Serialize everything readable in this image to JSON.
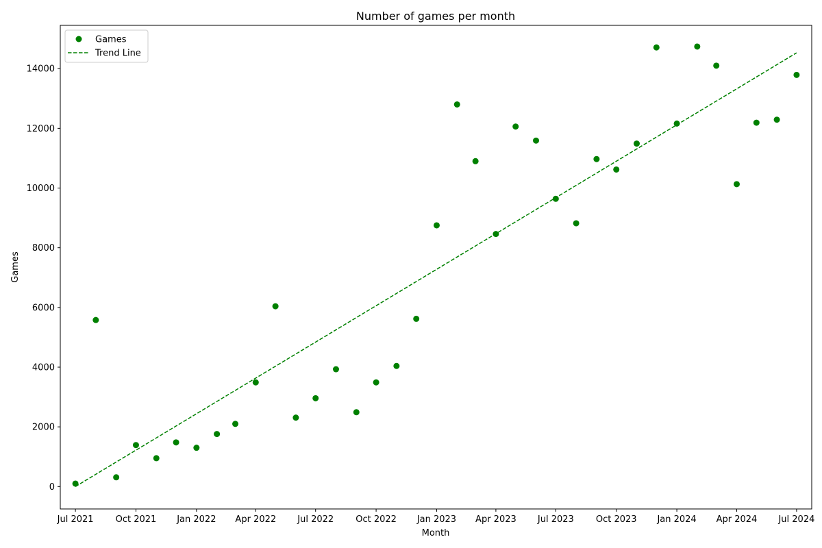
{
  "chart_data": {
    "type": "scatter",
    "title": "Number of games per month",
    "xlabel": "Month",
    "ylabel": "Games",
    "xlim": [
      "2021-06-08",
      "2024-07-24"
    ],
    "ylim": [
      -750,
      15450
    ],
    "x_ticks": [
      "2021-07-01",
      "2021-10-01",
      "2022-01-01",
      "2022-04-01",
      "2022-07-01",
      "2022-10-01",
      "2023-01-01",
      "2023-04-01",
      "2023-07-01",
      "2023-10-01",
      "2024-01-01",
      "2024-04-01",
      "2024-07-01"
    ],
    "x_tick_labels": [
      "Jul 2021",
      "Oct 2021",
      "Jan 2022",
      "Apr 2022",
      "Jul 2022",
      "Oct 2022",
      "Jan 2023",
      "Apr 2023",
      "Jul 2023",
      "Oct 2023",
      "Jan 2024",
      "Apr 2024",
      "Jul 2024"
    ],
    "y_ticks": [
      0,
      2000,
      4000,
      6000,
      8000,
      10000,
      12000,
      14000
    ],
    "y_tick_labels": [
      "0",
      "2000",
      "4000",
      "6000",
      "8000",
      "10000",
      "12000",
      "14000"
    ],
    "grid": false,
    "legend_position": "top-left",
    "series": [
      {
        "name": "Games",
        "kind": "scatter",
        "color": "#008000",
        "x": [
          "2021-07-01",
          "2021-08-01",
          "2021-09-01",
          "2021-10-01",
          "2021-11-01",
          "2021-12-01",
          "2022-01-01",
          "2022-02-01",
          "2022-03-01",
          "2022-04-01",
          "2022-05-01",
          "2022-06-01",
          "2022-07-01",
          "2022-08-01",
          "2022-09-01",
          "2022-10-01",
          "2022-11-01",
          "2022-12-01",
          "2023-01-01",
          "2023-02-01",
          "2023-03-01",
          "2023-04-01",
          "2023-05-01",
          "2023-06-01",
          "2023-07-01",
          "2023-08-01",
          "2023-09-01",
          "2023-10-01",
          "2023-11-01",
          "2023-12-01",
          "2024-01-01",
          "2024-02-01",
          "2024-03-01",
          "2024-04-01",
          "2024-05-01",
          "2024-06-01",
          "2024-07-01"
        ],
        "y": [
          100,
          5580,
          310,
          1390,
          950,
          1480,
          1300,
          1760,
          2100,
          3490,
          6040,
          2310,
          2960,
          3930,
          2490,
          3490,
          4040,
          5620,
          8750,
          12800,
          10900,
          8460,
          12060,
          11590,
          9640,
          8820,
          10970,
          10620,
          11490,
          14710,
          12160,
          14740,
          14100,
          10130,
          12190,
          12290,
          13790
        ]
      },
      {
        "name": "Trend Line",
        "kind": "line",
        "style": "dashed",
        "color": "#008000",
        "x": [
          "2021-07-01",
          "2024-07-01"
        ],
        "y": [
          0,
          14530
        ]
      }
    ]
  }
}
